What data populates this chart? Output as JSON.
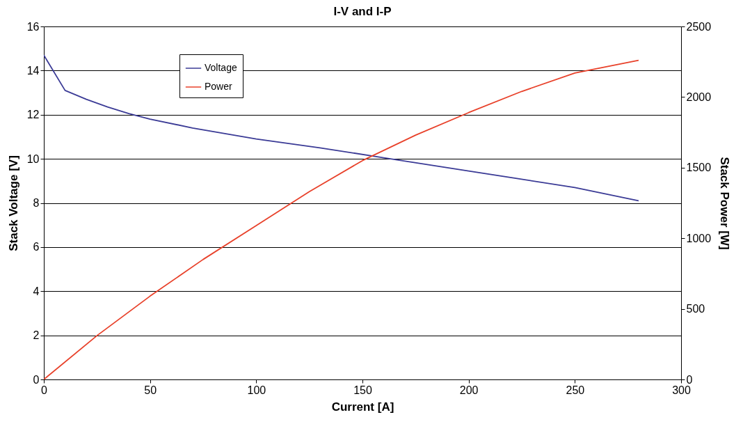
{
  "chart_data": {
    "type": "line",
    "title": "I-V and I-P",
    "xlabel": "Current [A]",
    "ylabel": "Stack Voltage [V]",
    "y2label": "Stack Power [W]",
    "series": [
      {
        "name": "Voltage",
        "color": "#3b3b96",
        "x": [
          0,
          10,
          20,
          30,
          40,
          50,
          70,
          100,
          130,
          160,
          200,
          250,
          280
        ],
        "values": [
          14.7,
          13.1,
          12.7,
          12.35,
          12.05,
          11.8,
          11.4,
          10.9,
          10.5,
          10.05,
          9.45,
          8.7,
          8.1
        ]
      },
      {
        "name": "Power",
        "color": "#e8412a",
        "axis": "y2",
        "x": [
          0,
          25,
          50,
          75,
          100,
          125,
          150,
          175,
          200,
          225,
          250,
          280
        ],
        "values": [
          0,
          310,
          590,
          850,
          1090,
          1330,
          1550,
          1730,
          1890,
          2040,
          2170,
          2260
        ]
      }
    ],
    "xlim": [
      0,
      300
    ],
    "xticks": [
      0,
      50,
      100,
      150,
      200,
      250,
      300
    ],
    "ylim": [
      0,
      16
    ],
    "yticks": [
      0,
      2,
      4,
      6,
      8,
      10,
      12,
      14,
      16
    ],
    "y2lim": [
      0,
      2500
    ],
    "y2ticks": [
      0,
      500,
      1000,
      1500,
      2000,
      2500
    ],
    "grid": "y",
    "legend": "top left",
    "line_style": "solid",
    "marker": "none"
  }
}
